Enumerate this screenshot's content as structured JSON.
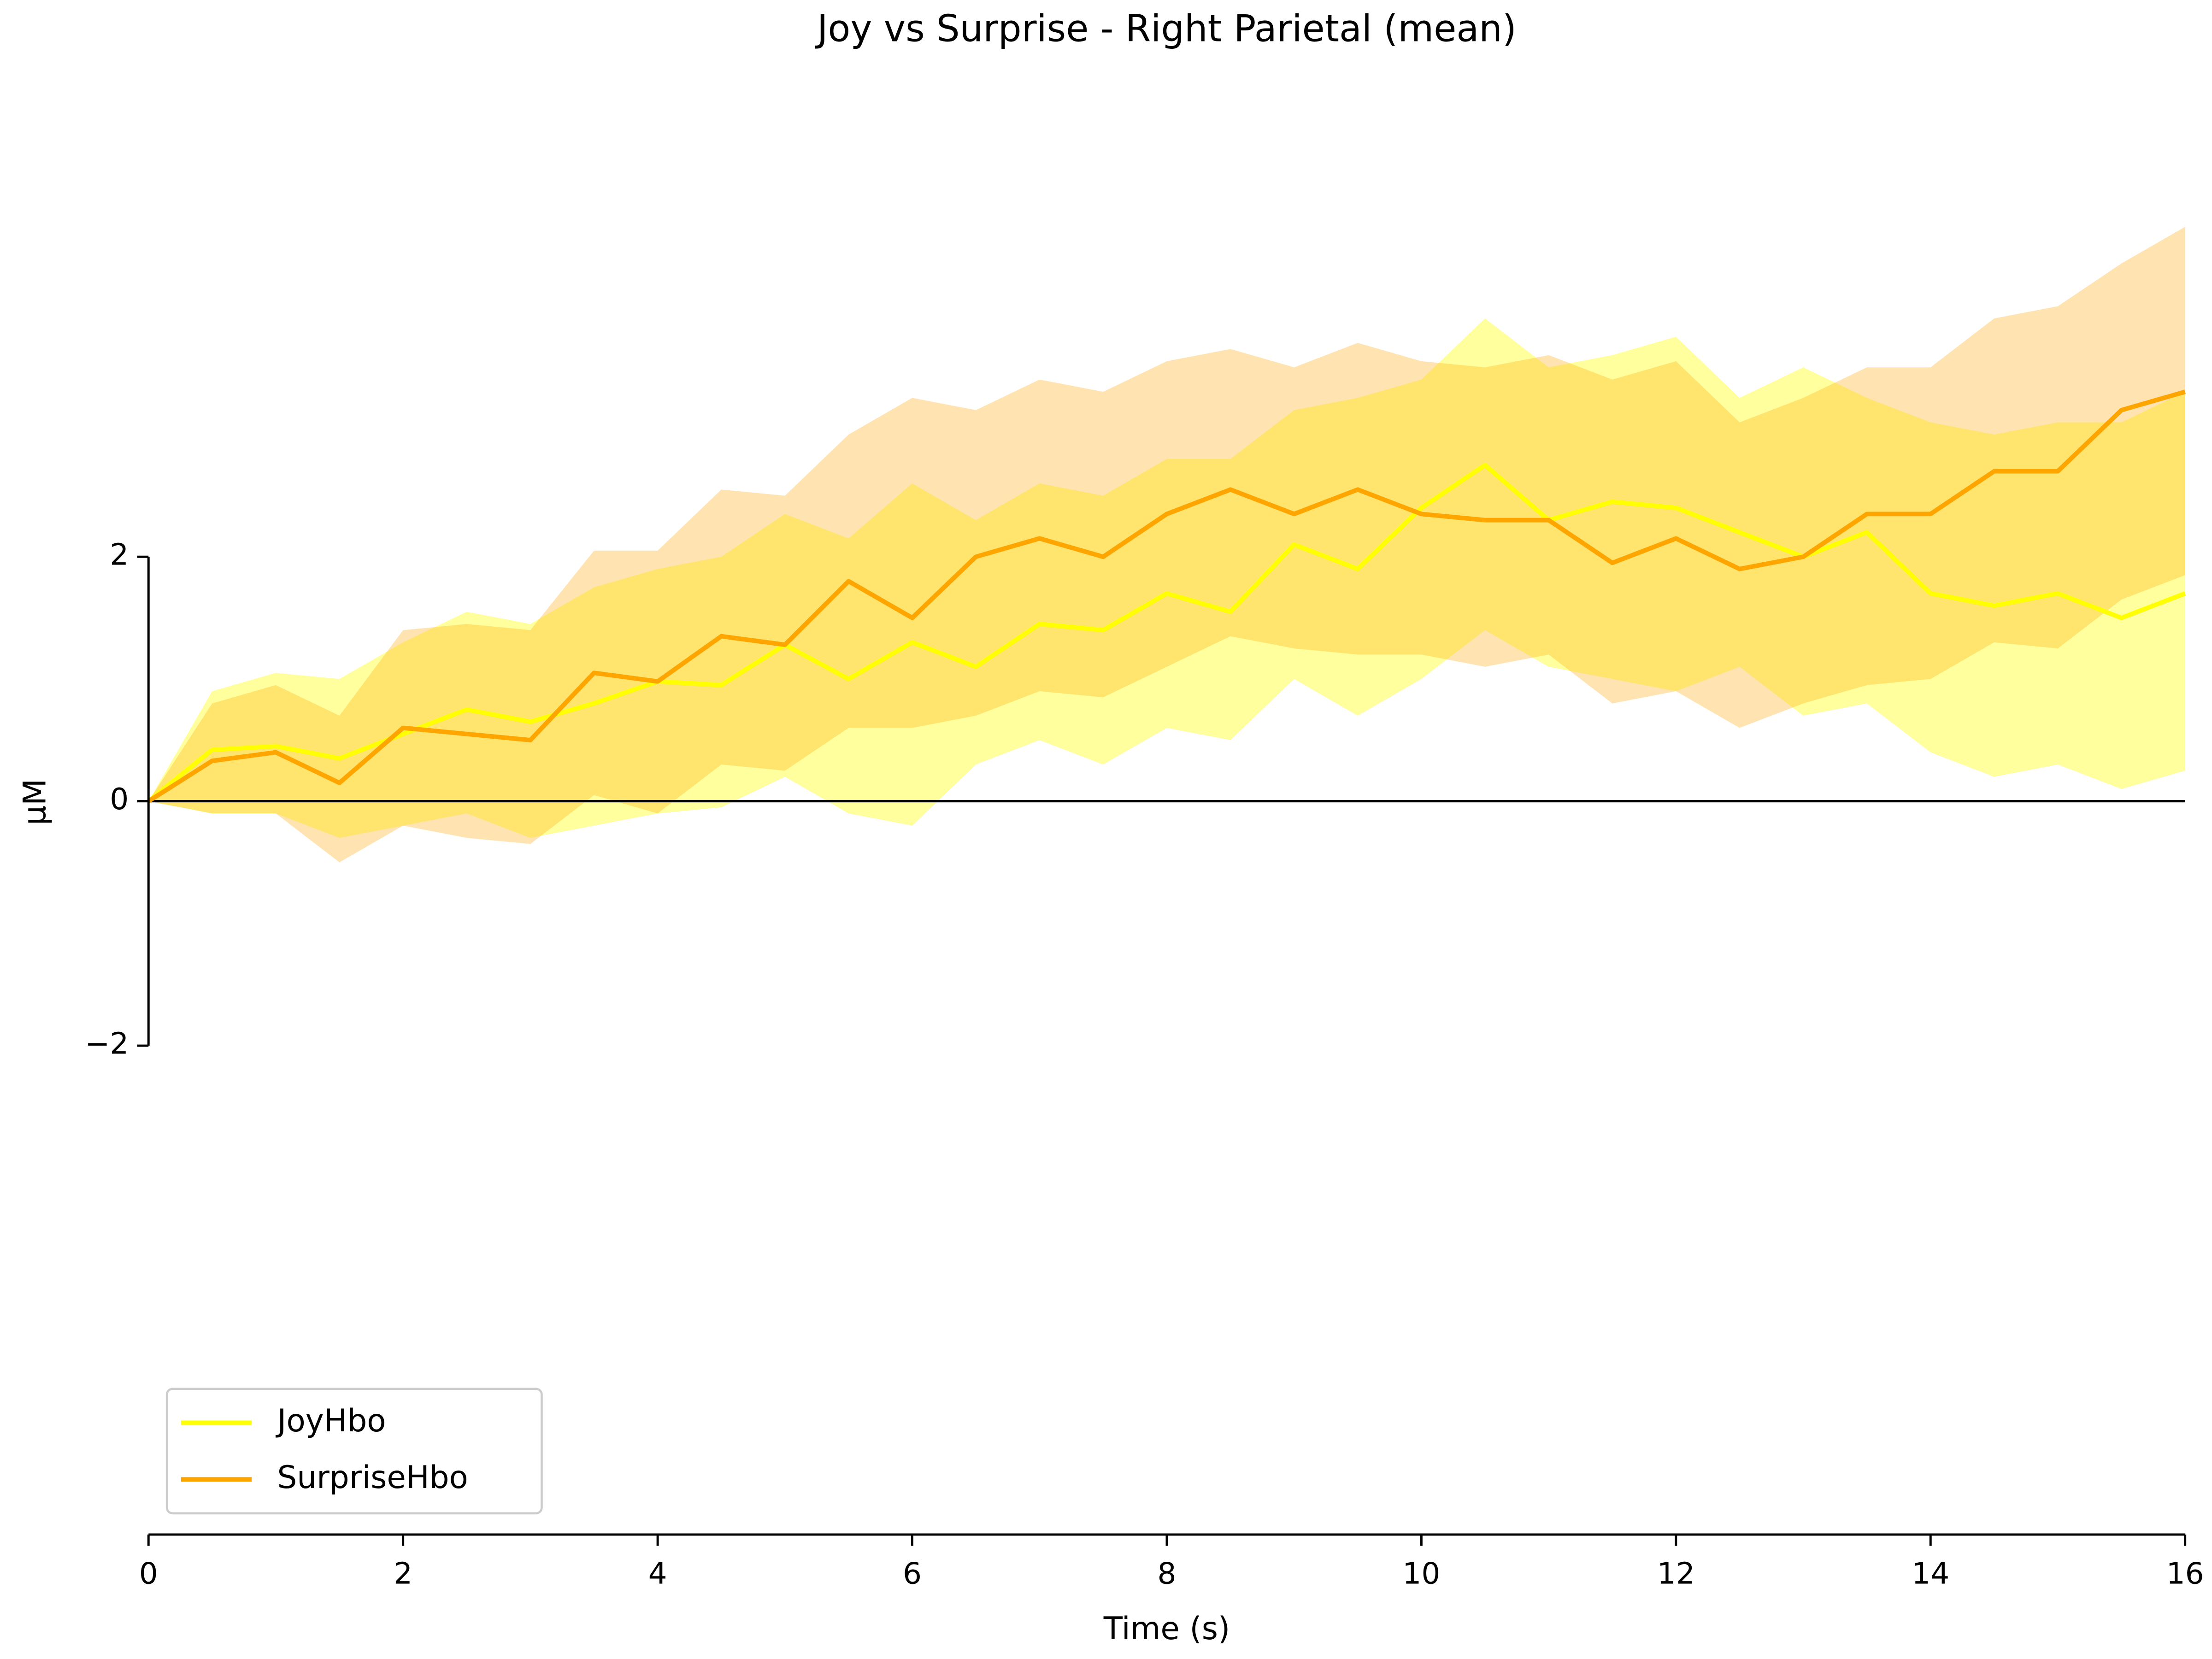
{
  "chart_data": {
    "type": "line",
    "title": "Joy vs Surprise - Right Parietal (mean)",
    "x_label": "Time (s)",
    "y_label": "µM",
    "x": [
      0,
      0.5,
      1,
      1.5,
      2,
      2.5,
      3,
      3.5,
      4,
      4.5,
      5,
      5.5,
      6,
      6.5,
      7,
      7.5,
      8,
      8.5,
      9,
      9.5,
      10,
      10.5,
      11,
      11.5,
      12,
      12.5,
      13,
      13.5,
      14,
      14.5,
      15,
      15.5,
      16
    ],
    "series": [
      {
        "name": "JoyHbo",
        "color": "#ffff00",
        "values": [
          0,
          0.42,
          0.45,
          0.35,
          0.55,
          0.75,
          0.65,
          0.8,
          0.98,
          0.95,
          1.28,
          1.0,
          1.3,
          1.1,
          1.45,
          1.4,
          1.7,
          1.55,
          2.1,
          1.9,
          2.4,
          2.75,
          2.3,
          2.45,
          2.4,
          2.2,
          2.0,
          2.2,
          1.7,
          1.6,
          1.7,
          1.5,
          1.7
        ],
        "lower": [
          0,
          -0.1,
          -0.1,
          -0.3,
          -0.2,
          -0.1,
          -0.3,
          -0.2,
          -0.1,
          -0.05,
          0.2,
          -0.1,
          -0.2,
          0.3,
          0.5,
          0.3,
          0.6,
          0.5,
          1.0,
          0.7,
          1.0,
          1.4,
          1.1,
          1.0,
          0.9,
          1.1,
          0.7,
          0.8,
          0.4,
          0.2,
          0.3,
          0.1,
          0.25
        ],
        "upper": [
          0,
          0.9,
          1.05,
          1.0,
          1.3,
          1.55,
          1.45,
          1.75,
          1.9,
          2.0,
          2.35,
          2.15,
          2.6,
          2.3,
          2.6,
          2.5,
          2.8,
          2.8,
          3.2,
          3.3,
          3.45,
          3.95,
          3.55,
          3.65,
          3.8,
          3.3,
          3.55,
          3.3,
          3.1,
          3.0,
          3.1,
          3.1,
          3.35
        ]
      },
      {
        "name": "SurpriseHbo",
        "color": "#ffa500",
        "values": [
          0,
          0.33,
          0.4,
          0.15,
          0.6,
          0.55,
          0.5,
          1.05,
          0.98,
          1.35,
          1.28,
          1.8,
          1.5,
          2.0,
          2.15,
          2.0,
          2.35,
          2.55,
          2.35,
          2.55,
          2.35,
          2.3,
          2.3,
          1.95,
          2.15,
          1.9,
          2.0,
          2.35,
          2.35,
          2.7,
          2.7,
          3.2,
          3.35
        ],
        "lower": [
          0,
          -0.1,
          -0.1,
          -0.5,
          -0.2,
          -0.3,
          -0.35,
          0.05,
          -0.1,
          0.3,
          0.25,
          0.6,
          0.6,
          0.7,
          0.9,
          0.85,
          1.1,
          1.35,
          1.25,
          1.2,
          1.2,
          1.1,
          1.2,
          0.8,
          0.9,
          0.6,
          0.8,
          0.95,
          1.0,
          1.3,
          1.25,
          1.65,
          1.85
        ],
        "upper": [
          0,
          0.8,
          0.95,
          0.7,
          1.4,
          1.45,
          1.4,
          2.05,
          2.05,
          2.55,
          2.5,
          3.0,
          3.3,
          3.2,
          3.45,
          3.35,
          3.6,
          3.7,
          3.55,
          3.75,
          3.6,
          3.55,
          3.65,
          3.45,
          3.6,
          3.1,
          3.3,
          3.55,
          3.55,
          3.95,
          4.05,
          4.4,
          4.7
        ]
      }
    ],
    "xlim": [
      0,
      16
    ],
    "xticks": [
      0,
      2,
      4,
      6,
      8,
      10,
      12,
      14,
      16
    ],
    "ylim": [
      -6,
      6
    ],
    "yticks": [
      {
        "value": -2,
        "label": "−2"
      },
      0,
      2
    ],
    "hline": 0,
    "legend": "lower left"
  }
}
